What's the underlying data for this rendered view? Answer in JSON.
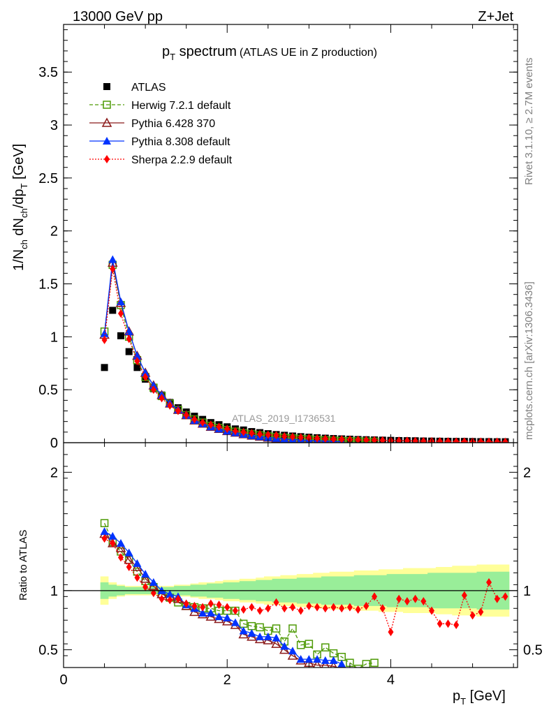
{
  "header": {
    "energy": "13000 GeV pp",
    "process": "Z+Jet",
    "title_main": "p",
    "title_sub": "T",
    "title_rest": " spectrum",
    "title_paren": "(ATLAS UE in Z production)",
    "watermark": "ATLAS_2019_I1736531",
    "side_rivet": "Rivet 3.1.10, ≥ 2.7M events",
    "side_mcplots": "mcplots.cern.ch [arXiv:1306.3436]"
  },
  "chart_data": [
    {
      "type": "scatter",
      "panel": "main",
      "ylabel": "1/N_ch dN_ch/dp_T [GeV]",
      "xlim": [
        0,
        5.55
      ],
      "ylim": [
        0,
        3.95
      ],
      "yticks": [
        "0",
        "0.5",
        "1",
        "1.5",
        "2",
        "2.5",
        "3",
        "3.5"
      ],
      "legend_position": "top-left",
      "x": [
        0.5,
        0.6,
        0.7,
        0.8,
        0.9,
        1.0,
        1.1,
        1.2,
        1.3,
        1.4,
        1.5,
        1.6,
        1.7,
        1.8,
        1.9,
        2.0,
        2.1,
        2.2,
        2.3,
        2.4,
        2.5,
        2.6,
        2.7,
        2.8,
        2.9,
        3.0,
        3.1,
        3.2,
        3.3,
        3.4,
        3.5,
        3.6,
        3.7,
        3.8,
        3.9,
        4.0,
        4.1,
        4.2,
        4.3,
        4.4,
        4.5,
        4.6,
        4.7,
        4.8,
        4.9,
        5.0,
        5.1,
        5.2,
        5.3,
        5.4
      ],
      "series": [
        {
          "name": "ATLAS",
          "color": "#000000",
          "marker": "square-filled",
          "values": [
            0.71,
            1.25,
            1.01,
            0.86,
            0.71,
            0.6,
            0.51,
            0.45,
            0.38,
            0.33,
            0.29,
            0.25,
            0.22,
            0.19,
            0.17,
            0.15,
            0.13,
            0.12,
            0.105,
            0.095,
            0.085,
            0.077,
            0.07,
            0.063,
            0.057,
            0.052,
            0.047,
            0.043,
            0.039,
            0.036,
            0.033,
            0.03,
            0.028,
            0.026,
            0.024,
            0.022,
            0.02,
            0.019,
            0.018,
            0.016,
            0.015,
            0.014,
            0.013,
            0.012,
            0.012,
            0.011,
            0.01,
            0.01,
            0.009,
            0.009
          ]
        },
        {
          "name": "Herwig 7.2.1 default",
          "color": "#4e9a06",
          "marker": "square-open",
          "dash": "5,3",
          "values": [
            1.05,
            1.68,
            1.3,
            1.0,
            0.78,
            0.62,
            0.52,
            0.44,
            0.37,
            0.31,
            0.26,
            0.22,
            0.19,
            0.16,
            0.14,
            0.12,
            0.105,
            0.09,
            0.08,
            0.07,
            0.06,
            0.053,
            0.047,
            0.041,
            0.036,
            0.031,
            0.027,
            0.023,
            0.02,
            0.017,
            0.015,
            0.013,
            0.011,
            0.01
          ]
        },
        {
          "name": "Pythia 6.428 370",
          "color": "#8b1a1a",
          "marker": "triangle-open",
          "values": [
            1.02,
            1.7,
            1.32,
            1.05,
            0.82,
            0.66,
            0.54,
            0.45,
            0.37,
            0.31,
            0.26,
            0.21,
            0.18,
            0.15,
            0.13,
            0.11,
            0.095,
            0.08,
            0.067,
            0.057,
            0.048,
            0.04,
            0.034,
            0.029,
            0.024,
            0.02,
            0.017,
            0.014,
            0.012,
            0.01
          ]
        },
        {
          "name": "Pythia 8.308 default",
          "color": "#0033ff",
          "marker": "triangle-filled",
          "values": [
            1.03,
            1.73,
            1.33,
            1.05,
            0.82,
            0.66,
            0.54,
            0.45,
            0.37,
            0.31,
            0.26,
            0.21,
            0.18,
            0.15,
            0.13,
            0.11,
            0.095,
            0.08,
            0.068,
            0.058,
            0.049,
            0.041,
            0.035,
            0.03,
            0.025,
            0.021,
            0.018,
            0.015,
            0.012,
            0.01
          ]
        },
        {
          "name": "Sherpa 2.2.9 default",
          "color": "#ff0000",
          "marker": "diamond-filled",
          "dash": "2,2",
          "values": [
            0.97,
            1.64,
            1.22,
            0.98,
            0.77,
            0.62,
            0.5,
            0.42,
            0.35,
            0.3,
            0.26,
            0.22,
            0.19,
            0.17,
            0.15,
            0.13,
            0.11,
            0.1,
            0.09,
            0.08,
            0.075,
            0.07,
            0.06,
            0.055,
            0.05,
            0.045,
            0.04,
            0.037,
            0.034,
            0.032,
            0.03,
            0.027,
            0.025,
            0.024,
            0.022,
            0.02,
            0.019,
            0.018,
            0.016,
            0.015,
            0.014,
            0.013,
            0.012,
            0.011,
            0.011,
            0.01,
            0.01,
            0.009,
            0.009,
            0.008
          ]
        }
      ]
    },
    {
      "type": "scatter",
      "panel": "ratio",
      "ylabel": "Ratio to ATLAS",
      "xlabel": "p_T [GeV]",
      "xlim": [
        0,
        5.55
      ],
      "ylim": [
        0.35,
        2.25
      ],
      "yticks": [
        "0.5",
        "1",
        "2"
      ],
      "xticks": [
        "0",
        "2",
        "4"
      ],
      "reference_line": 1,
      "x": [
        0.5,
        0.6,
        0.7,
        0.8,
        0.9,
        1.0,
        1.1,
        1.2,
        1.3,
        1.4,
        1.5,
        1.6,
        1.7,
        1.8,
        1.9,
        2.0,
        2.1,
        2.2,
        2.3,
        2.4,
        2.5,
        2.6,
        2.7,
        2.8,
        2.9,
        3.0,
        3.1,
        3.2,
        3.3,
        3.4,
        3.5,
        3.6,
        3.7,
        3.8,
        3.9,
        4.0,
        4.1,
        4.2,
        4.3,
        4.4,
        4.5,
        4.6,
        4.7,
        4.8,
        4.9,
        5.0,
        5.1,
        5.2,
        5.3,
        5.4
      ],
      "band_inner": [
        0.07,
        0.05,
        0.04,
        0.03,
        0.03,
        0.03,
        0.03,
        0.03,
        0.03,
        0.04,
        0.04,
        0.05,
        0.05,
        0.06,
        0.06,
        0.07,
        0.07,
        0.08,
        0.08,
        0.09,
        0.09,
        0.1,
        0.1,
        0.1,
        0.11,
        0.11,
        0.11,
        0.12,
        0.12,
        0.12,
        0.12,
        0.13,
        0.13,
        0.13,
        0.13,
        0.14,
        0.14,
        0.14,
        0.14,
        0.14,
        0.15,
        0.15,
        0.15,
        0.15,
        0.15,
        0.15,
        0.16,
        0.16,
        0.16,
        0.16
      ],
      "band_outer": [
        0.12,
        0.07,
        0.05,
        0.04,
        0.04,
        0.04,
        0.04,
        0.04,
        0.04,
        0.05,
        0.05,
        0.06,
        0.07,
        0.07,
        0.08,
        0.09,
        0.09,
        0.1,
        0.1,
        0.11,
        0.12,
        0.12,
        0.13,
        0.13,
        0.14,
        0.14,
        0.15,
        0.15,
        0.16,
        0.16,
        0.16,
        0.17,
        0.17,
        0.17,
        0.18,
        0.18,
        0.18,
        0.19,
        0.19,
        0.19,
        0.19,
        0.2,
        0.2,
        0.21,
        0.21,
        0.21,
        0.22,
        0.22,
        0.22,
        0.22
      ],
      "series": [
        {
          "name": "Herwig 7.2.1 default",
          "color": "#4e9a06",
          "marker": "square-open",
          "dash": "5,3",
          "values": [
            1.57,
            1.41,
            1.33,
            1.26,
            1.16,
            1.08,
            1.03,
            0.97,
            0.94,
            0.9,
            0.87,
            0.86,
            0.85,
            0.85,
            0.83,
            0.83,
            0.83,
            0.72,
            0.7,
            0.69,
            0.66,
            0.68,
            0.57,
            0.68,
            0.54,
            0.55,
            0.46,
            0.52,
            0.47,
            0.44,
            0.39,
            0.34,
            0.38,
            0.39
          ]
        },
        {
          "name": "Pythia 6.428 370",
          "color": "#8b1a1a",
          "marker": "triangle-open",
          "values": [
            1.48,
            1.4,
            1.36,
            1.26,
            1.2,
            1.1,
            1.04,
            0.97,
            0.95,
            0.93,
            0.87,
            0.82,
            0.8,
            0.78,
            0.76,
            0.74,
            0.71,
            0.63,
            0.61,
            0.59,
            0.58,
            0.55,
            0.5,
            0.45,
            0.41,
            0.39,
            0.37,
            0.37,
            0.36,
            0.34
          ]
        },
        {
          "name": "Pythia 8.308 default",
          "color": "#0033ff",
          "marker": "triangle-filled",
          "values": [
            1.5,
            1.46,
            1.4,
            1.32,
            1.23,
            1.14,
            1.07,
            1.0,
            0.97,
            0.95,
            0.88,
            0.85,
            0.81,
            0.81,
            0.78,
            0.77,
            0.73,
            0.66,
            0.64,
            0.61,
            0.61,
            0.6,
            0.53,
            0.49,
            0.42,
            0.42,
            0.42,
            0.41,
            0.41,
            0.38
          ]
        },
        {
          "name": "Sherpa 2.2.9 default",
          "color": "#ff0000",
          "marker": "diamond-filled",
          "dash": "2,2",
          "values": [
            1.44,
            1.4,
            1.28,
            1.2,
            1.11,
            1.03,
            0.98,
            0.93,
            0.92,
            0.93,
            0.89,
            0.87,
            0.86,
            0.89,
            0.88,
            0.86,
            0.83,
            0.84,
            0.86,
            0.83,
            0.85,
            0.9,
            0.85,
            0.86,
            0.83,
            0.87,
            0.86,
            0.85,
            0.86,
            0.85,
            0.86,
            0.84,
            0.87,
            0.95,
            0.85,
            0.65,
            0.93,
            0.91,
            0.93,
            0.91,
            0.83,
            0.72,
            0.72,
            0.71,
            0.96,
            0.79,
            0.82,
            1.07,
            0.93,
            0.95
          ]
        }
      ]
    }
  ]
}
